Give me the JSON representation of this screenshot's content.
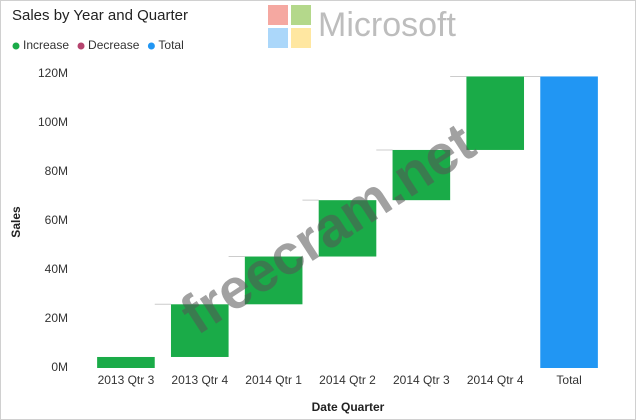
{
  "chart_data": {
    "type": "waterfall",
    "title": "Sales by Year and Quarter",
    "x_label": "Date Quarter",
    "y_label": "Sales",
    "categories": [
      "2013 Qtr 3",
      "2013 Qtr 4",
      "2014 Qtr 1",
      "2014 Qtr 2",
      "2014 Qtr 3",
      "2014 Qtr 4",
      "Total"
    ],
    "series": [
      {
        "name": "Increase",
        "color": "#1aab48",
        "values": [
          4.5,
          21.5,
          19.5,
          23,
          20.5,
          30,
          null
        ]
      },
      {
        "name": "Decrease",
        "color": "#b5446e",
        "values": [
          null,
          null,
          null,
          null,
          null,
          null,
          null
        ]
      },
      {
        "name": "Total",
        "color": "#2196f3",
        "values": [
          null,
          null,
          null,
          null,
          null,
          null,
          119
        ]
      }
    ],
    "ylim": [
      0,
      120
    ],
    "yticks": [
      {
        "value": 0,
        "label": "0M"
      },
      {
        "value": 20,
        "label": "20M"
      },
      {
        "value": 40,
        "label": "40M"
      },
      {
        "value": 60,
        "label": "60M"
      },
      {
        "value": 80,
        "label": "80M"
      },
      {
        "value": 100,
        "label": "100M"
      },
      {
        "value": 120,
        "label": "120M"
      }
    ],
    "grid": false
  },
  "watermark": {
    "logo_text": "Microsoft",
    "site": "freecram.net"
  }
}
